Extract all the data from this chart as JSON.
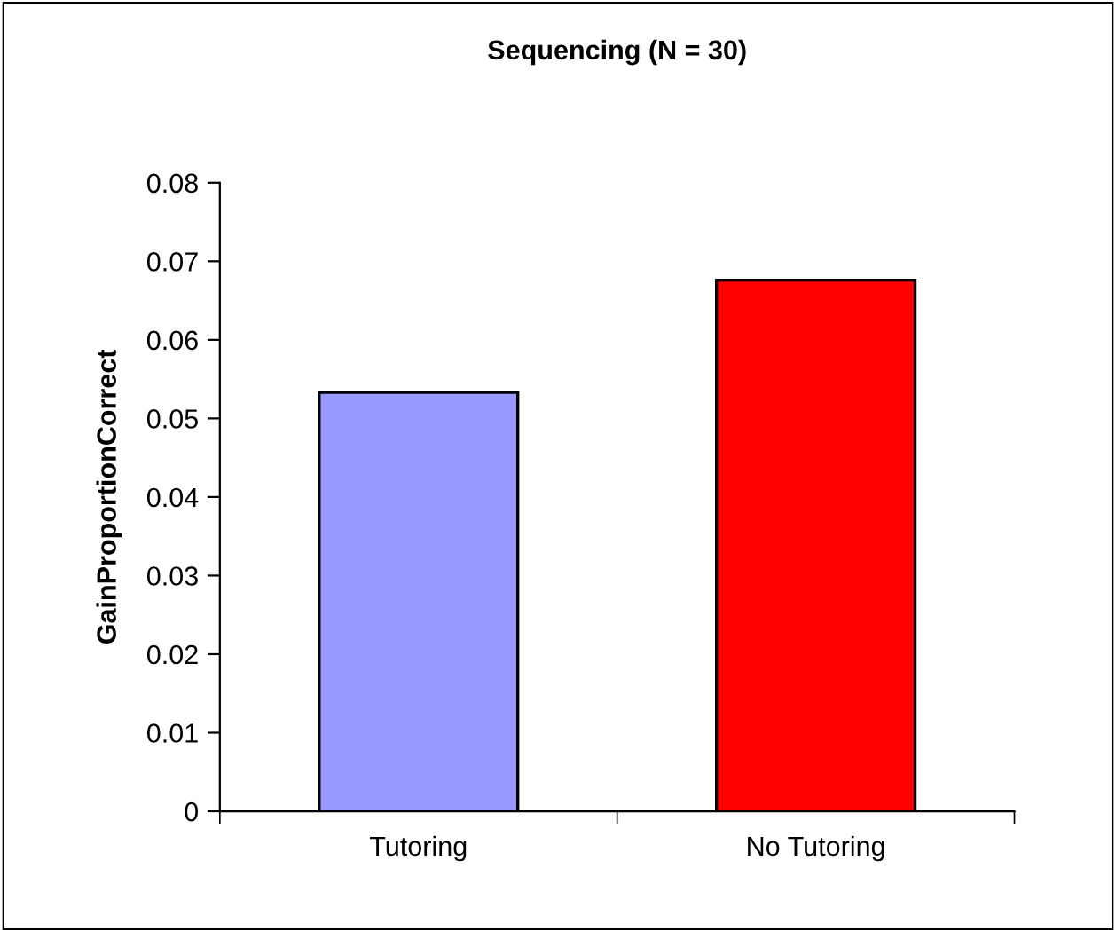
{
  "chart_data": {
    "type": "bar",
    "title": "Sequencing (N = 30)",
    "ylabel": "GainProportionCorrect",
    "categories": [
      "Tutoring",
      "No Tutoring"
    ],
    "values": [
      0.0533,
      0.0676
    ],
    "colors": [
      "#9999ff",
      "#ff0000"
    ],
    "ylim": [
      0,
      0.08
    ],
    "yticks": [
      {
        "value": 0,
        "label": "0"
      },
      {
        "value": 0.01,
        "label": "0.01"
      },
      {
        "value": 0.02,
        "label": "0.02"
      },
      {
        "value": 0.03,
        "label": "0.03"
      },
      {
        "value": 0.04,
        "label": "0.04"
      },
      {
        "value": 0.05,
        "label": "0.05"
      },
      {
        "value": 0.06,
        "label": "0.06"
      },
      {
        "value": 0.07,
        "label": "0.07"
      },
      {
        "value": 0.08,
        "label": "0.08"
      }
    ],
    "grid": false,
    "legend": false
  }
}
